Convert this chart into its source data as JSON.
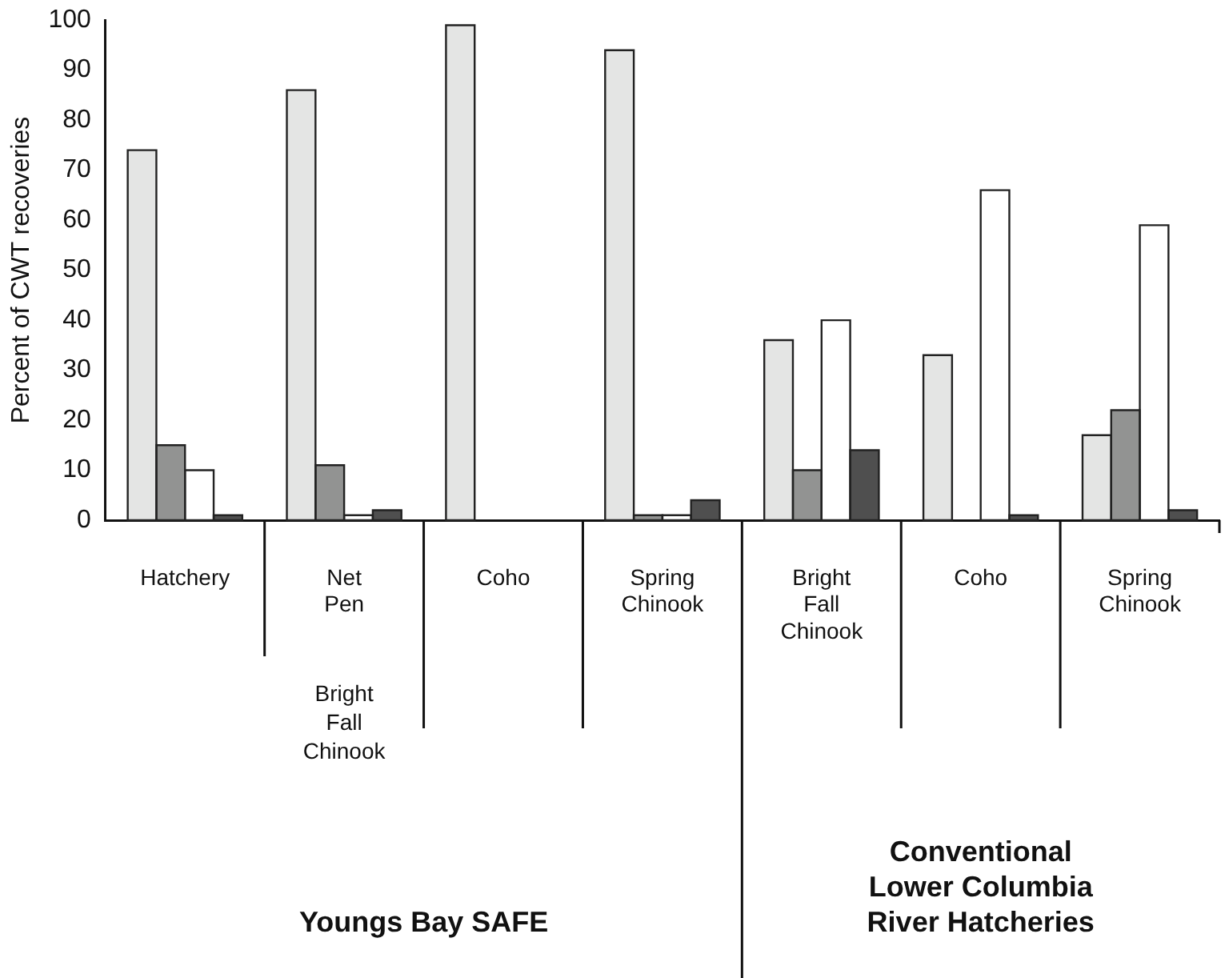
{
  "chart_data": {
    "type": "bar",
    "ylabel": "Percent of CWT recoveries",
    "categories": [
      "Hatchery",
      "Net Pen",
      "Coho",
      "Spring Chinook",
      "Bright Fall Chinook",
      "Coho",
      "Spring Chinook"
    ],
    "series": [
      {
        "color": "#e4e5e4",
        "values": [
          74,
          86,
          99,
          94,
          36,
          33,
          17
        ]
      },
      {
        "color": "#929392",
        "values": [
          15,
          11,
          0,
          1,
          10,
          0,
          22
        ]
      },
      {
        "color": "#ffffff",
        "values": [
          10,
          1,
          0,
          1,
          40,
          66,
          59
        ]
      },
      {
        "color": "#4f4f4f",
        "values": [
          1,
          2,
          0,
          4,
          14,
          1,
          2
        ]
      }
    ],
    "ylim": [
      0,
      100
    ],
    "yticks": [
      0,
      10,
      20,
      30,
      40,
      50,
      60,
      70,
      80,
      90,
      100
    ],
    "grid": false,
    "legend": false,
    "annotations": [
      "Bright Fall Chinook",
      "Youngs Bay SAFE",
      "Conventional Lower Columbia River Hatcheries"
    ]
  }
}
